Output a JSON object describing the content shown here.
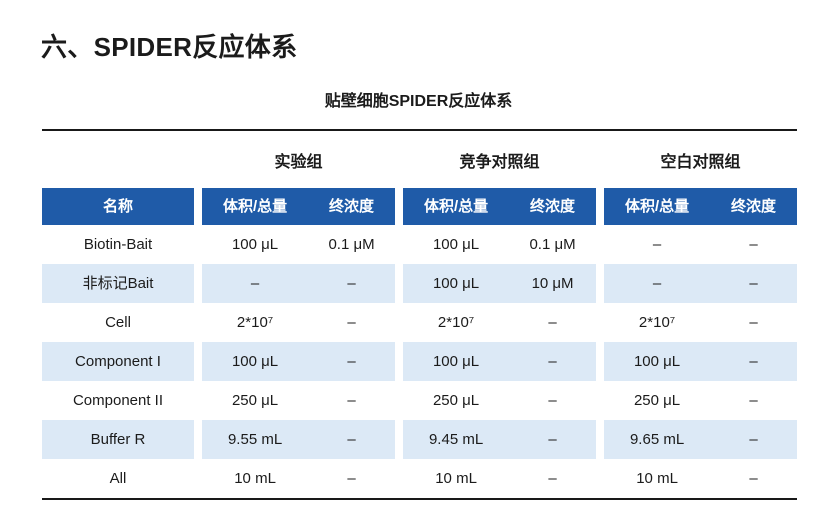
{
  "page": {
    "title": "六、SPIDER反应体系",
    "table_title": "贴壁细胞SPIDER反应体系"
  },
  "table": {
    "name_header": "名称",
    "group_headers": [
      "实验组",
      "竞争对照组",
      "空白对照组"
    ],
    "sub_headers": [
      "体积/总量",
      "终浓度"
    ],
    "rows": [
      {
        "name": "Biotin-Bait",
        "values": [
          "100 μL",
          "0.1 μM",
          "100 μL",
          "0.1 μM",
          "–",
          "–"
        ]
      },
      {
        "name": "非标记Bait",
        "values": [
          "–",
          "–",
          "100 μL",
          "10 μM",
          "–",
          "–"
        ]
      },
      {
        "name": "Cell",
        "values": [
          "2*10⁷",
          "–",
          "2*10⁷",
          "–",
          "2*10⁷",
          "–"
        ]
      },
      {
        "name": "Component I",
        "values": [
          "100 μL",
          "–",
          "100 μL",
          "–",
          "100 μL",
          "–"
        ]
      },
      {
        "name": "Component II",
        "values": [
          "250 μL",
          "–",
          "250 μL",
          "–",
          "250 μL",
          "–"
        ]
      },
      {
        "name": "Buffer R",
        "values": [
          "9.55 mL",
          "–",
          "9.45 mL",
          "–",
          "9.65 mL",
          "–"
        ]
      },
      {
        "name": "All",
        "values": [
          "10 mL",
          "–",
          "10 mL",
          "–",
          "10 mL",
          "–"
        ]
      }
    ],
    "colors": {
      "header_bg": "#1F5BA8",
      "header_text": "#FFFFFF",
      "alt_row_bg": "#DCE9F6",
      "rule": "#191919",
      "body_text": "#1B1B1B"
    }
  }
}
